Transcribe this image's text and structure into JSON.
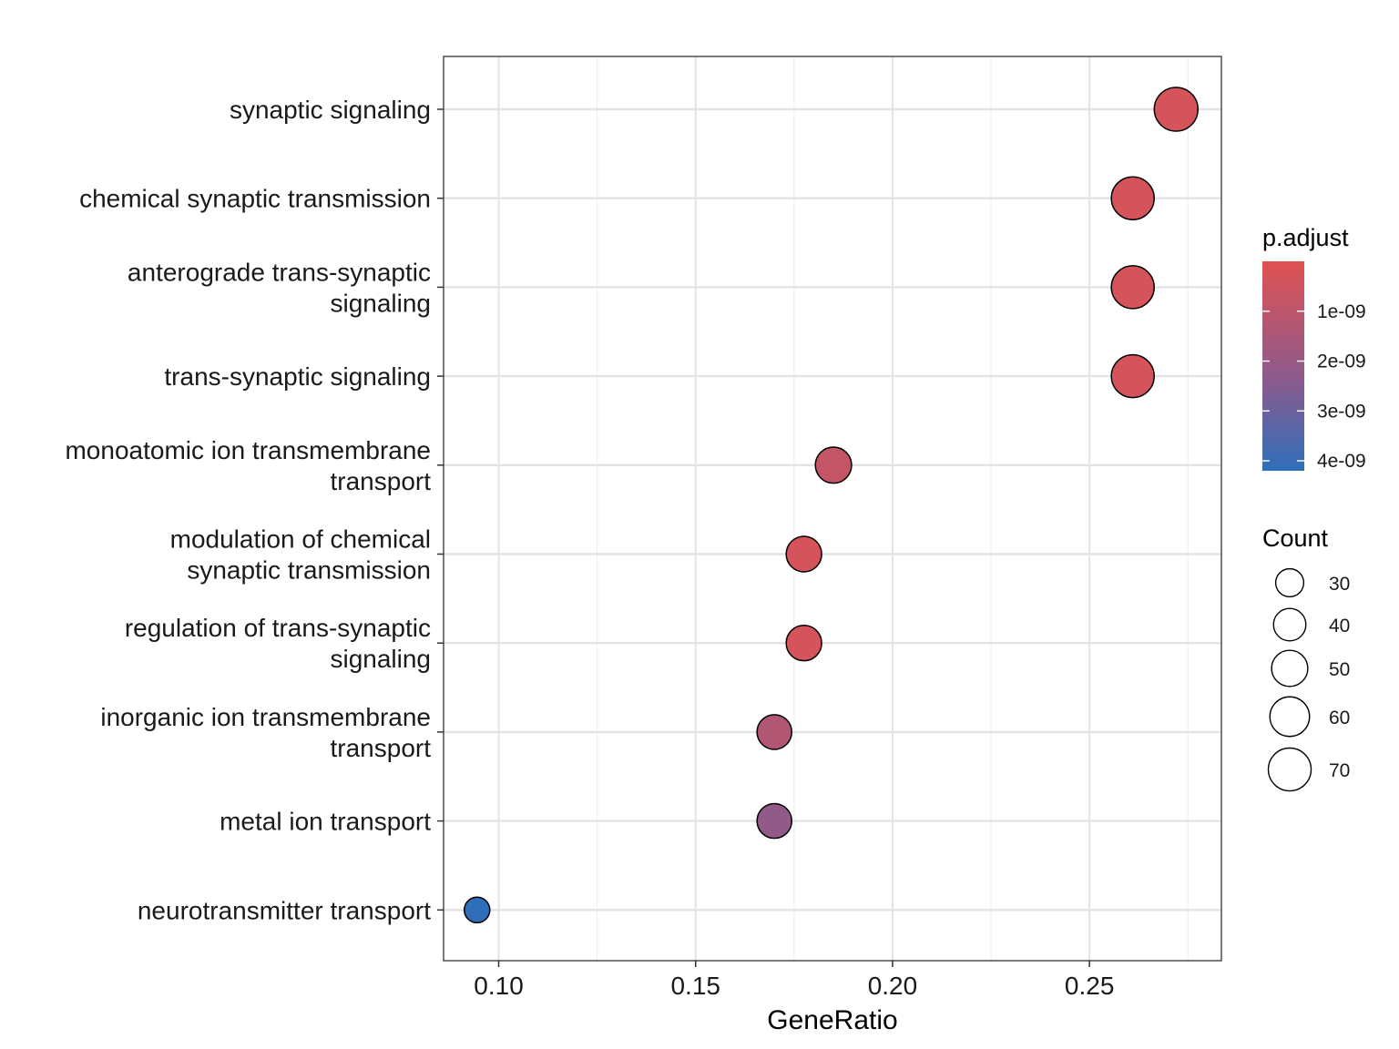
{
  "chart_data": {
    "type": "scatter",
    "xlabel": "GeneRatio",
    "ylabel": "",
    "xlim": [
      0.086,
      0.2835
    ],
    "x_ticks": [
      0.1,
      0.15,
      0.2,
      0.25
    ],
    "x_tick_labels": [
      "0.10",
      "0.15",
      "0.20",
      "0.25"
    ],
    "grid": true,
    "color_legend": {
      "title": "p.adjust",
      "placement": "right",
      "range": [
        0,
        4.2e-09
      ],
      "ticks": [
        1e-09,
        2e-09,
        3e-09,
        4e-09
      ],
      "tick_labels": [
        "1e-09",
        "2e-09",
        "3e-09",
        "4e-09"
      ],
      "low_color": "#e05252",
      "mid_color": "#8e5a8c",
      "high_color": "#2f6fba"
    },
    "size_legend": {
      "title": "Count",
      "placement": "right",
      "values": [
        30,
        40,
        50,
        60,
        70
      ],
      "labels": [
        "30",
        "40",
        "50",
        "60",
        "70"
      ]
    },
    "terms": [
      {
        "label_lines": [
          "synaptic signaling"
        ],
        "gene_ratio": 0.272,
        "count": 73,
        "p_adjust": 3e-10
      },
      {
        "label_lines": [
          "chemical synaptic transmission"
        ],
        "gene_ratio": 0.261,
        "count": 70,
        "p_adjust": 3e-10
      },
      {
        "label_lines": [
          "anterograde trans-synaptic",
          "signaling"
        ],
        "gene_ratio": 0.261,
        "count": 70,
        "p_adjust": 3e-10
      },
      {
        "label_lines": [
          "trans-synaptic signaling"
        ],
        "gene_ratio": 0.261,
        "count": 70,
        "p_adjust": 3e-10
      },
      {
        "label_lines": [
          "monoatomic ion transmembrane",
          "transport"
        ],
        "gene_ratio": 0.185,
        "count": 50,
        "p_adjust": 8e-10
      },
      {
        "label_lines": [
          "modulation of chemical",
          "synaptic transmission"
        ],
        "gene_ratio": 0.1775,
        "count": 48,
        "p_adjust": 3e-10
      },
      {
        "label_lines": [
          "regulation of trans-synaptic",
          "signaling"
        ],
        "gene_ratio": 0.1775,
        "count": 48,
        "p_adjust": 3e-10
      },
      {
        "label_lines": [
          "inorganic ion transmembrane",
          "transport"
        ],
        "gene_ratio": 0.17,
        "count": 46,
        "p_adjust": 1.3e-09
      },
      {
        "label_lines": [
          "metal ion transport"
        ],
        "gene_ratio": 0.17,
        "count": 46,
        "p_adjust": 2.2e-09
      },
      {
        "label_lines": [
          "neurotransmitter transport"
        ],
        "gene_ratio": 0.0945,
        "count": 25,
        "p_adjust": 4.2e-09
      }
    ]
  }
}
